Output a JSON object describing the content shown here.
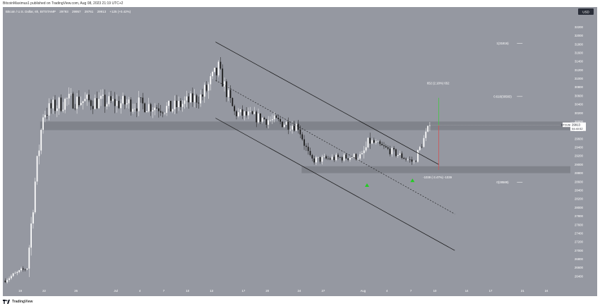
{
  "header": {
    "published_text": "BitcoinMaximus1 published on TradingView.com, Aug 08, 2023 21:19 UTC+2"
  },
  "legend": {
    "symbol": "Bitcoin / U.S. Dollar, 6h, BITSTAMP",
    "open": "29793",
    "high": "29957",
    "low": "29761",
    "close": "29913",
    "change": "+125 (+0.42%)"
  },
  "footer": {
    "logo_text": "TradingView"
  },
  "colors": {
    "background": "#9598a1",
    "band": "#7c7f87",
    "candle_up": "#ffffff",
    "candle_down": "#1a1a1a",
    "channel": "#111111",
    "arrow_green": "#22cc22",
    "target_green": "#43c843",
    "target_red": "#d15454"
  },
  "chart_data": {
    "type": "candlestick",
    "title": "Bitcoin / U.S. Dollar, 6h, BITSTAMP",
    "currency_label": "USD",
    "ylim": [
      26200,
      32500
    ],
    "y_ticks": [
      26400,
      26600,
      26800,
      27000,
      27200,
      27400,
      27600,
      27800,
      28000,
      28200,
      28400,
      28600,
      28800,
      29000,
      29200,
      29400,
      29600,
      29800,
      30000,
      30200,
      30400,
      30600,
      30800,
      31000,
      31200,
      31400,
      31600,
      31800,
      32000,
      32200
    ],
    "x_ticks": [
      "19",
      "22",
      "26",
      "Jul",
      "4",
      "7",
      "10",
      "13",
      "17",
      "20",
      "24",
      "27",
      "Aug",
      "4",
      "7",
      "10",
      "14",
      "17",
      "21",
      "24"
    ],
    "x_tick_days": [
      -12,
      -9,
      -5,
      0,
      3,
      6,
      9,
      12,
      16,
      19,
      23,
      26,
      31,
      34,
      37,
      40,
      44,
      47,
      51,
      54
    ],
    "x_domain_days": [
      -14,
      57
    ],
    "key_levels": {
      "resistance_band": [
        29800,
        30000
      ],
      "support_band": [
        28800,
        28960
      ]
    },
    "price_label": {
      "symbol": "BTCUSD",
      "price": "29913",
      "countdown": "04:40:52"
    },
    "fib_levels": [
      {
        "label": "1(31816)",
        "value": 31816
      },
      {
        "label": "0.618(30583)",
        "value": 30583
      },
      {
        "label": "0(28589)",
        "value": 28589
      }
    ],
    "measure_up": {
      "label": "652 (2.18%) 652",
      "from": 29900,
      "to": 30552,
      "day": 40.5
    },
    "measure_down": {
      "label": "-1039 (-3.47%) -1039",
      "from": 29913,
      "to": 28874,
      "day": 40.5
    },
    "channel": {
      "upper": [
        [
          12.5,
          31850
        ],
        [
          40.5,
          29000
        ]
      ],
      "lower": [
        [
          12.5,
          30080
        ],
        [
          42.5,
          27000
        ]
      ],
      "mid": [
        [
          12.5,
          30960
        ],
        [
          42.5,
          27850
        ]
      ]
    },
    "arrows": [
      {
        "day": 31.5,
        "value": 28530
      },
      {
        "day": 37.2,
        "value": 28640
      }
    ],
    "phases": [
      {
        "start": -14,
        "end": -11,
        "from": 26300,
        "to": 26600,
        "vol": 80
      },
      {
        "start": -11,
        "end": -10,
        "from": 26600,
        "to": 28600,
        "vol": 300
      },
      {
        "start": -10,
        "end": -9,
        "from": 28600,
        "to": 30200,
        "vol": 300
      },
      {
        "start": -9,
        "end": -6,
        "from": 30200,
        "to": 30500,
        "vol": 260
      },
      {
        "start": -6,
        "end": 3,
        "from": 30500,
        "to": 30400,
        "vol": 240
      },
      {
        "start": 3,
        "end": 7,
        "from": 30400,
        "to": 30300,
        "vol": 220
      },
      {
        "start": 7,
        "end": 11,
        "from": 30300,
        "to": 30600,
        "vol": 220
      },
      {
        "start": 11,
        "end": 13,
        "from": 30600,
        "to": 31200,
        "vol": 300
      },
      {
        "start": 13,
        "end": 15,
        "from": 31200,
        "to": 30200,
        "vol": 220
      },
      {
        "start": 15,
        "end": 23,
        "from": 30200,
        "to": 29900,
        "vol": 170
      },
      {
        "start": 23,
        "end": 24.5,
        "from": 29900,
        "to": 29100,
        "vol": 160
      },
      {
        "start": 24.5,
        "end": 31,
        "from": 29100,
        "to": 29200,
        "vol": 110
      },
      {
        "start": 31,
        "end": 32,
        "from": 29200,
        "to": 29550,
        "vol": 200
      },
      {
        "start": 32,
        "end": 37.5,
        "from": 29550,
        "to": 29050,
        "vol": 110
      },
      {
        "start": 37.5,
        "end": 39.5,
        "from": 29050,
        "to": 29913,
        "vol": 130
      }
    ]
  }
}
